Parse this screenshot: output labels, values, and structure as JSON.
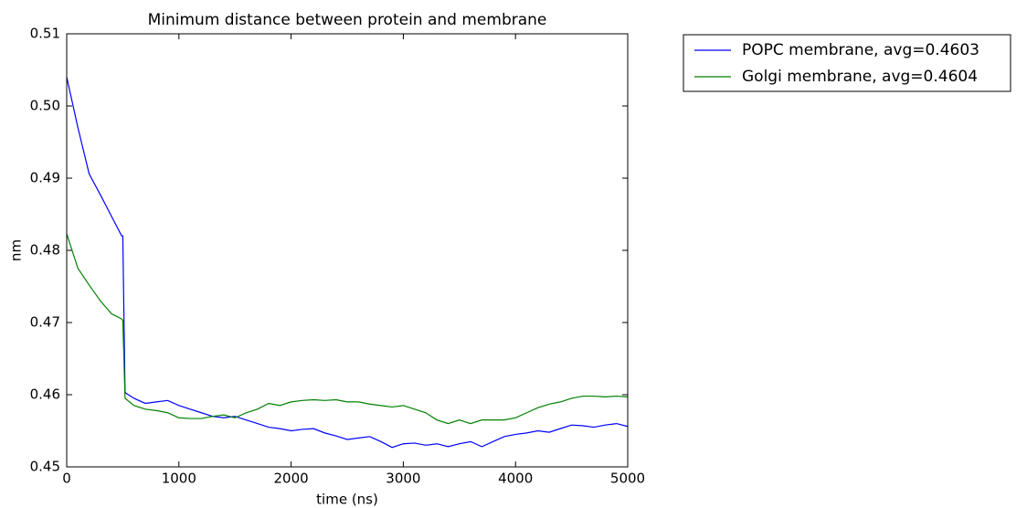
{
  "chart_data": {
    "type": "line",
    "title": "Minimum distance between protein and membrane",
    "x_label": "time (ns)",
    "y_label": "nm",
    "x": [
      0,
      100,
      200,
      300,
      400,
      490,
      500,
      520,
      600,
      700,
      800,
      900,
      1000,
      1100,
      1200,
      1300,
      1400,
      1500,
      1600,
      1700,
      1800,
      1900,
      2000,
      2100,
      2200,
      2300,
      2400,
      2500,
      2600,
      2700,
      2800,
      2900,
      3000,
      3100,
      3200,
      3300,
      3400,
      3500,
      3600,
      3700,
      3800,
      3900,
      4000,
      4100,
      4200,
      4300,
      4400,
      4500,
      4600,
      4700,
      4800,
      4900,
      5000
    ],
    "series": [
      {
        "name": "POPC membrane, avg=0.4603",
        "color": "#0000ff",
        "values": [
          0.504,
          0.497,
          0.4906,
          0.4877,
          0.4847,
          0.482,
          0.482,
          0.4603,
          0.4595,
          0.4588,
          0.459,
          0.4592,
          0.4585,
          0.458,
          0.4575,
          0.457,
          0.4568,
          0.457,
          0.4565,
          0.456,
          0.4555,
          0.4553,
          0.455,
          0.4552,
          0.4553,
          0.4547,
          0.4543,
          0.4538,
          0.454,
          0.4542,
          0.4535,
          0.4527,
          0.4532,
          0.4533,
          0.453,
          0.4532,
          0.4528,
          0.4532,
          0.4535,
          0.4528,
          0.4535,
          0.4542,
          0.4545,
          0.4547,
          0.455,
          0.4548,
          0.4553,
          0.4558,
          0.4557,
          0.4555,
          0.4558,
          0.456,
          0.4556
        ]
      },
      {
        "name": "Golgi membrane, avg=0.4604",
        "color": "#008000",
        "values": [
          0.4823,
          0.4775,
          0.4752,
          0.473,
          0.4712,
          0.4705,
          0.4703,
          0.4595,
          0.4585,
          0.458,
          0.4578,
          0.4575,
          0.4568,
          0.4567,
          0.4567,
          0.457,
          0.4572,
          0.4568,
          0.4575,
          0.458,
          0.4588,
          0.4585,
          0.459,
          0.4592,
          0.4593,
          0.4592,
          0.4593,
          0.459,
          0.459,
          0.4587,
          0.4585,
          0.4583,
          0.4585,
          0.458,
          0.4575,
          0.4565,
          0.456,
          0.4565,
          0.456,
          0.4565,
          0.4565,
          0.4565,
          0.4568,
          0.4575,
          0.4582,
          0.4587,
          0.459,
          0.4595,
          0.4598,
          0.4598,
          0.4597,
          0.4598,
          0.4597
        ]
      }
    ],
    "xlim": [
      0,
      5000
    ],
    "xticks": [
      0,
      1000,
      2000,
      3000,
      4000,
      5000
    ],
    "ylim": [
      0.45,
      0.51
    ],
    "yticks": [
      0.45,
      0.46,
      0.47,
      0.48,
      0.49,
      {
        "value": 0.5,
        "label": "0.50"
      },
      0.51
    ],
    "grid": false,
    "legend": "outside upper right"
  }
}
